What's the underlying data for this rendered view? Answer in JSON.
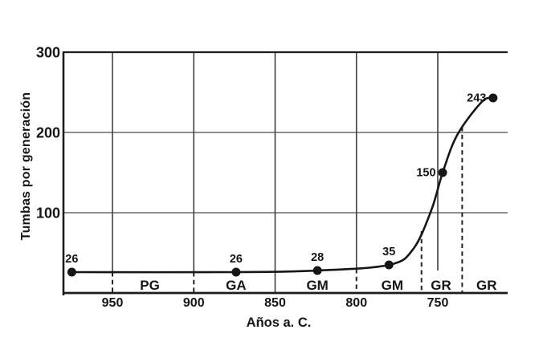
{
  "figure": {
    "background": "#ffffff"
  },
  "chart_data": {
    "type": "line",
    "title": "",
    "xlabel": "Años a. C.",
    "ylabel": "Tumbas por generación",
    "x_axis": {
      "ticks": [
        950,
        900,
        850,
        800,
        750
      ],
      "reversed": true,
      "range_years": [
        980,
        707
      ]
    },
    "y_axis": {
      "ticks": [
        300,
        200,
        100
      ],
      "lim": [
        0,
        300
      ]
    },
    "series": [
      {
        "name": "Tumbas por generación",
        "points": [
          {
            "year": 975,
            "value": 26,
            "label": "26",
            "label_pos": "above"
          },
          {
            "year": 874,
            "value": 26,
            "label": "26",
            "label_pos": "above"
          },
          {
            "year": 824,
            "value": 28,
            "label": "28",
            "label_pos": "above"
          },
          {
            "year": 780,
            "value": 35,
            "label": "35",
            "label_pos": "above"
          },
          {
            "year": 747,
            "value": 150,
            "label": "150",
            "label_pos": "left"
          },
          {
            "year": 716,
            "value": 243,
            "label": "243",
            "label_pos": "left"
          }
        ]
      }
    ],
    "curve_shape_anchors": [
      {
        "year": 765,
        "value": 55
      },
      {
        "year": 754,
        "value": 103
      },
      {
        "year": 738,
        "value": 197
      },
      {
        "year": 723,
        "value": 238
      }
    ],
    "period_labels": [
      {
        "text": "PG",
        "year": 927
      },
      {
        "text": "GA",
        "year": 874
      },
      {
        "text": "GM",
        "year": 824
      },
      {
        "text": "GM",
        "year": 778
      },
      {
        "text": "GR",
        "year": 748
      },
      {
        "text": "GR",
        "year": 720
      }
    ],
    "vertical_gridlines": [
      {
        "year": 950,
        "solid_to_value": 27,
        "dashed_to_axis": true
      },
      {
        "year": 900,
        "solid_to_value": 27,
        "dashed_to_axis": true
      },
      {
        "year": 850,
        "solid_to_value": 0,
        "dashed_to_axis": false
      },
      {
        "year": 800,
        "solid_to_value": 31,
        "dashed_to_axis": true
      },
      {
        "year": 750,
        "solid_to_value": 28,
        "dashed_to_axis": false
      }
    ],
    "period_boundaries": [
      {
        "year": 760,
        "top_value": 77
      },
      {
        "year": 735,
        "top_value": 207
      }
    ],
    "grid": true,
    "legend": false,
    "colors": {
      "ink": "#161616",
      "grid": "#4c4c4c",
      "background": "#ffffff"
    }
  }
}
